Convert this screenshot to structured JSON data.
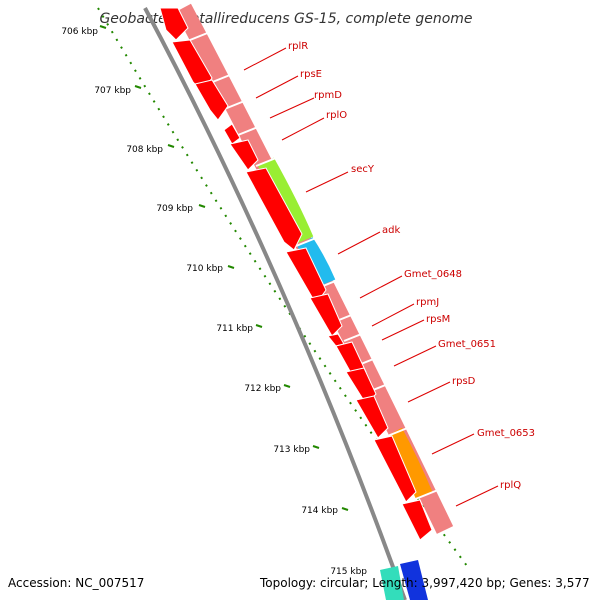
{
  "title": "Geobacter metallireducens GS-15, complete genome",
  "accession": "Accession: NC_007517",
  "summary": "Topology: circular; Length: 3,997,420 bp; Genes: 3,577",
  "kbp_labels": [
    "706 kbp",
    "707 kbp",
    "708 kbp",
    "709 kbp",
    "710 kbp",
    "711 kbp",
    "712 kbp",
    "713 kbp",
    "714 kbp",
    "715 kbp"
  ],
  "gene_labels": [
    "rplR",
    "rpsE",
    "rpmD",
    "rplO",
    "secY",
    "adk",
    "Gmet_0648",
    "rpmJ",
    "rpsM",
    "Gmet_0651",
    "rpsD",
    "Gmet_0653",
    "rplQ"
  ],
  "colors": {
    "cds": "#ff0000",
    "gene_bar": "#f08080",
    "secY": "#99ee33",
    "adk": "#22bbee",
    "Gmet_0653": "#ff9900",
    "label": "#cc0000",
    "tick": "#228800",
    "backbone": "#999999"
  }
}
